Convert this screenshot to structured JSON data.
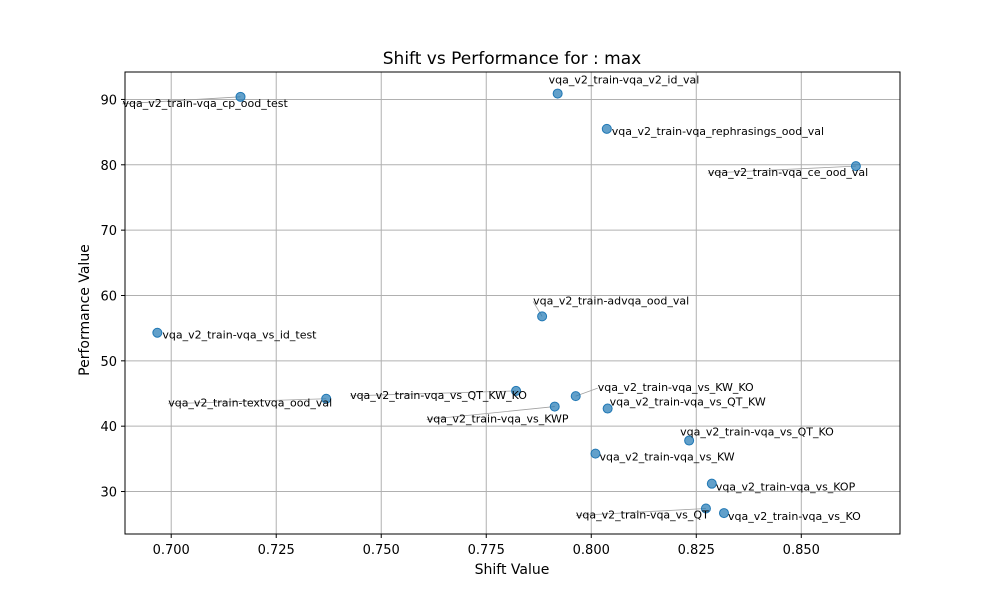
{
  "chart_data": {
    "type": "scatter",
    "title": "Shift vs Performance for : max",
    "xlabel": "Shift Value",
    "ylabel": "Performance Value",
    "xlim": [
      0.689,
      0.8735
    ],
    "ylim": [
      23.5,
      94.2
    ],
    "xticks": [
      0.7,
      0.725,
      0.75,
      0.775,
      0.8,
      0.825,
      0.85
    ],
    "xtick_labels": [
      "0.700",
      "0.725",
      "0.750",
      "0.775",
      "0.800",
      "0.825",
      "0.850"
    ],
    "yticks": [
      30,
      40,
      50,
      60,
      70,
      80,
      90
    ],
    "ytick_labels": [
      "30",
      "40",
      "50",
      "60",
      "70",
      "80",
      "90"
    ],
    "grid": true,
    "marker_color": "#1f77b4",
    "points": [
      {
        "x": 0.7165,
        "y": 90.4,
        "label": "vqa_v2_train-vqa_cp_ood_test"
      },
      {
        "x": 0.792,
        "y": 90.9,
        "label": "vqa_v2_train-vqa_v2_id_val"
      },
      {
        "x": 0.8037,
        "y": 85.5,
        "label": "vqa_v2_train-vqa_rephrasings_ood_val"
      },
      {
        "x": 0.863,
        "y": 79.8,
        "label": "vqa_v2_train-vqa_ce_ood_val"
      },
      {
        "x": 0.6967,
        "y": 54.3,
        "label": "vqa_v2_train-vqa_vs_id_test"
      },
      {
        "x": 0.7883,
        "y": 56.8,
        "label": "vqa_v2_train-advqa_ood_val"
      },
      {
        "x": 0.7369,
        "y": 44.2,
        "label": "vqa_v2_train-textvqa_ood_val"
      },
      {
        "x": 0.7821,
        "y": 45.4,
        "label": "vqa_v2_train-vqa_vs_QT_KW_KO"
      },
      {
        "x": 0.7913,
        "y": 43.0,
        "label": "vqa_v2_train-vqa_vs_KWP"
      },
      {
        "x": 0.7963,
        "y": 44.6,
        "label": "vqa_v2_train-vqa_vs_KW_KO"
      },
      {
        "x": 0.8039,
        "y": 42.7,
        "label": "vqa_v2_train-vqa_vs_QT_KW"
      },
      {
        "x": 0.8233,
        "y": 37.8,
        "label": "vqa_v2_train-vqa_vs_QT_KO"
      },
      {
        "x": 0.801,
        "y": 35.8,
        "label": "vqa_v2_train-vqa_vs_KW"
      },
      {
        "x": 0.8287,
        "y": 31.2,
        "label": "vqa_v2_train-vqa_vs_KOP"
      },
      {
        "x": 0.8273,
        "y": 27.4,
        "label": "vqa_v2_train-vqa_vs_QT"
      },
      {
        "x": 0.8316,
        "y": 26.7,
        "label": "vqa_v2_train-vqa_vs_KO"
      }
    ]
  }
}
